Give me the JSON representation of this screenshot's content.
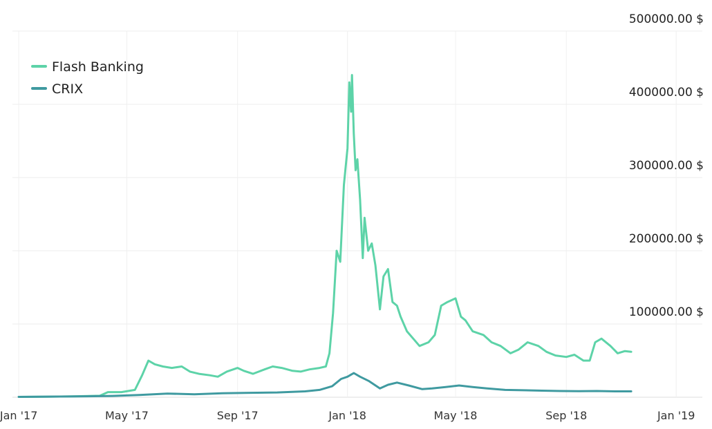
{
  "chart_data": {
    "type": "line",
    "title": "",
    "xlabel": "",
    "ylabel": "",
    "ylim": [
      0,
      500000
    ],
    "xlim": [
      "2016-12-25",
      "2019-01-30"
    ],
    "grid": true,
    "legend_position": "top-left",
    "y_ticks": [
      100000,
      200000,
      300000,
      400000,
      500000
    ],
    "y_tick_labels": [
      "100000.00 $",
      "200000.00 $",
      "300000.00 $",
      "400000.00 $",
      "500000.00 $"
    ],
    "x_ticks": [
      "2017-01-01",
      "2017-05-01",
      "2017-09-01",
      "2018-01-01",
      "2018-05-01",
      "2018-09-01",
      "2019-01-01"
    ],
    "x_tick_labels": [
      "Jan '17",
      "May '17",
      "Sep '17",
      "Jan '18",
      "May '18",
      "Sep '18",
      "Jan '19"
    ],
    "series": [
      {
        "name": "Flash Banking",
        "color": "#5dd3a8",
        "x": [
          "2017-01-01",
          "2017-02-01",
          "2017-03-01",
          "2017-04-01",
          "2017-04-10",
          "2017-04-25",
          "2017-05-10",
          "2017-05-18",
          "2017-05-25",
          "2017-06-01",
          "2017-06-10",
          "2017-06-20",
          "2017-07-01",
          "2017-07-10",
          "2017-07-20",
          "2017-08-01",
          "2017-08-10",
          "2017-08-20",
          "2017-09-01",
          "2017-09-08",
          "2017-09-18",
          "2017-10-01",
          "2017-10-10",
          "2017-10-20",
          "2017-11-01",
          "2017-11-10",
          "2017-11-20",
          "2017-12-01",
          "2017-12-08",
          "2017-12-12",
          "2017-12-16",
          "2017-12-20",
          "2017-12-24",
          "2017-12-28",
          "2018-01-01",
          "2018-01-03",
          "2018-01-05",
          "2018-01-06",
          "2018-01-08",
          "2018-01-10",
          "2018-01-12",
          "2018-01-15",
          "2018-01-18",
          "2018-01-20",
          "2018-01-24",
          "2018-01-28",
          "2018-02-01",
          "2018-02-06",
          "2018-02-10",
          "2018-02-15",
          "2018-02-20",
          "2018-02-25",
          "2018-03-01",
          "2018-03-08",
          "2018-03-15",
          "2018-03-22",
          "2018-04-01",
          "2018-04-08",
          "2018-04-15",
          "2018-04-22",
          "2018-05-01",
          "2018-05-07",
          "2018-05-12",
          "2018-05-20",
          "2018-06-01",
          "2018-06-10",
          "2018-06-20",
          "2018-07-01",
          "2018-07-10",
          "2018-07-20",
          "2018-08-01",
          "2018-08-10",
          "2018-08-20",
          "2018-09-01",
          "2018-09-10",
          "2018-09-20",
          "2018-09-27",
          "2018-10-03",
          "2018-10-10",
          "2018-10-20",
          "2018-10-28",
          "2018-11-05",
          "2018-11-12"
        ],
        "values": [
          500,
          800,
          1200,
          2000,
          7000,
          7000,
          10000,
          30000,
          50000,
          45000,
          42000,
          40000,
          42000,
          35000,
          32000,
          30000,
          28000,
          35000,
          40000,
          36000,
          32000,
          38000,
          42000,
          40000,
          36000,
          35000,
          38000,
          40000,
          42000,
          60000,
          115000,
          200000,
          185000,
          290000,
          340000,
          430000,
          390000,
          440000,
          360000,
          310000,
          325000,
          270000,
          190000,
          245000,
          200000,
          210000,
          180000,
          120000,
          165000,
          175000,
          130000,
          125000,
          110000,
          90000,
          80000,
          70000,
          75000,
          85000,
          125000,
          130000,
          135000,
          110000,
          105000,
          90000,
          85000,
          75000,
          70000,
          60000,
          65000,
          75000,
          70000,
          62000,
          57000,
          55000,
          58000,
          50000,
          50000,
          75000,
          80000,
          70000,
          60000,
          63000,
          62000
        ]
      },
      {
        "name": "CRIX",
        "color": "#3f9aa0",
        "x": [
          "2017-01-01",
          "2017-03-01",
          "2017-04-15",
          "2017-05-15",
          "2017-06-15",
          "2017-07-15",
          "2017-08-15",
          "2017-09-15",
          "2017-10-15",
          "2017-11-15",
          "2017-12-01",
          "2017-12-15",
          "2017-12-25",
          "2018-01-01",
          "2018-01-08",
          "2018-01-15",
          "2018-01-25",
          "2018-02-06",
          "2018-02-15",
          "2018-02-25",
          "2018-03-10",
          "2018-03-25",
          "2018-04-05",
          "2018-04-20",
          "2018-05-05",
          "2018-05-20",
          "2018-06-05",
          "2018-06-25",
          "2018-07-15",
          "2018-08-05",
          "2018-08-25",
          "2018-09-15",
          "2018-10-05",
          "2018-10-25",
          "2018-11-12"
        ],
        "values": [
          500,
          1000,
          1800,
          3000,
          5000,
          4000,
          5500,
          6000,
          6500,
          8000,
          10000,
          15000,
          25000,
          28000,
          33000,
          28000,
          22000,
          12000,
          17000,
          20000,
          16000,
          11000,
          12000,
          14000,
          16000,
          14000,
          12000,
          10000,
          9500,
          9000,
          8500,
          8200,
          8500,
          8000,
          8000
        ]
      }
    ]
  }
}
